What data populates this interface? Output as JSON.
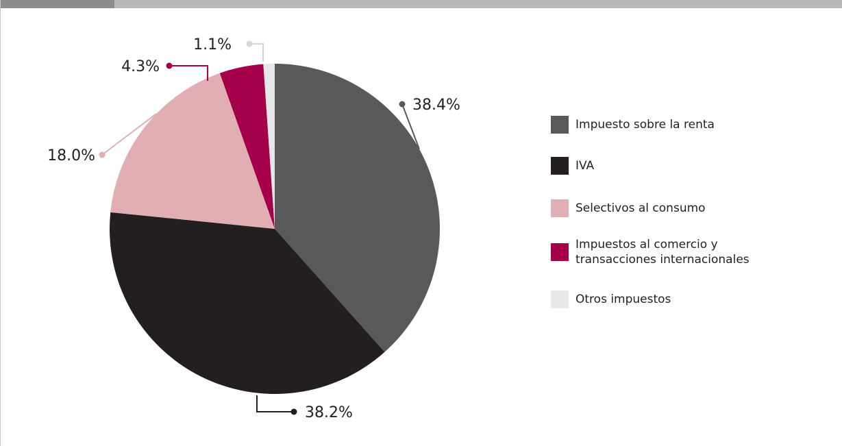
{
  "chart_data": {
    "type": "pie",
    "title": "",
    "slices": [
      {
        "name": "Impuesto sobre la renta",
        "value": 38.4,
        "label": "38.4%",
        "color": "#58595b"
      },
      {
        "name": "IVA",
        "value": 38.2,
        "label": "38.2%",
        "color": "#231f20"
      },
      {
        "name": "Selectivos al consumo",
        "value": 18.0,
        "label": "18.0%",
        "color": "#e1aeb3"
      },
      {
        "name": "Impuestos al comercio y\ntransacciones internacionales",
        "value": 4.3,
        "label": "4.3%",
        "color": "#a50049"
      },
      {
        "name": "Otros impuestos",
        "value": 1.1,
        "label": "1.1%",
        "color": "#e6e7e8"
      }
    ],
    "start_angle": "12 o'clock",
    "direction": "clockwise",
    "legend_position": "right"
  }
}
